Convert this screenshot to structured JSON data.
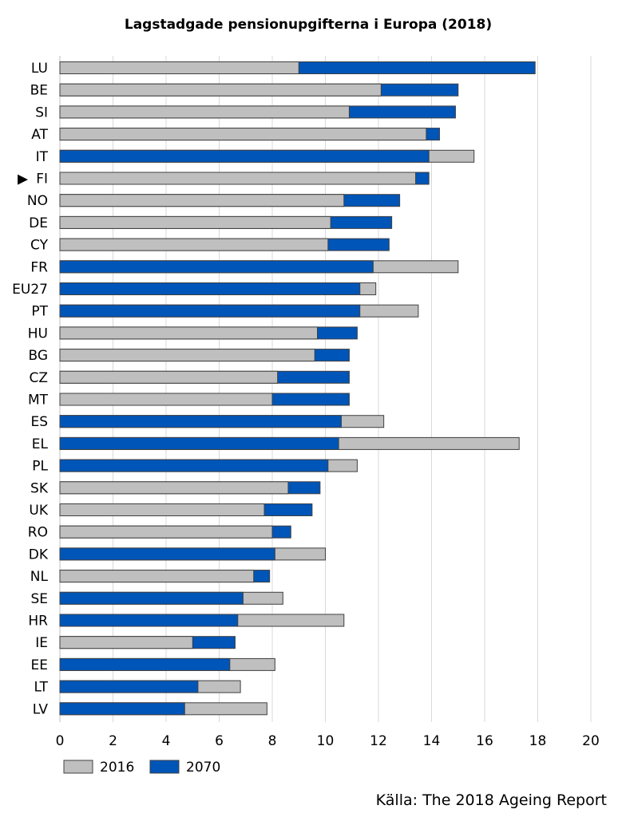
{
  "chart_data": {
    "type": "bar",
    "orientation": "horizontal",
    "title": "Lagstadgade pensionupgifterna i Europa (2018)",
    "source": "Källa: The 2018 Ageing Report",
    "highlight_marker": "▶",
    "highlight_category": "FI",
    "xlim": [
      0,
      20
    ],
    "x_ticks": [
      0,
      2,
      4,
      6,
      8,
      10,
      12,
      14,
      16,
      18,
      20
    ],
    "grid": true,
    "legend_position": "bottom-left",
    "colors": {
      "2016": "#BFBFBF",
      "2070": "#0055B8",
      "border": "#404040",
      "grid": "#D9D9D9"
    },
    "categories": [
      "LU",
      "BE",
      "SI",
      "AT",
      "IT",
      "FI",
      "NO",
      "DE",
      "CY",
      "FR",
      "EU27",
      "PT",
      "HU",
      "BG",
      "CZ",
      "MT",
      "ES",
      "EL",
      "PL",
      "SK",
      "UK",
      "RO",
      "DK",
      "NL",
      "SE",
      "HR",
      "IE",
      "EE",
      "LT",
      "LV"
    ],
    "series": [
      {
        "name": "2016",
        "values": [
          9.0,
          12.1,
          10.9,
          13.8,
          15.6,
          13.4,
          10.7,
          10.2,
          10.1,
          15.0,
          11.9,
          13.5,
          9.7,
          9.6,
          8.2,
          8.0,
          12.2,
          17.3,
          11.2,
          8.6,
          7.7,
          8.0,
          10.0,
          7.3,
          8.4,
          10.7,
          5.0,
          8.1,
          6.8,
          7.8
        ]
      },
      {
        "name": "2070",
        "values": [
          17.9,
          15.0,
          14.9,
          14.3,
          13.9,
          13.9,
          12.8,
          12.5,
          12.4,
          11.8,
          11.3,
          11.3,
          11.2,
          10.9,
          10.9,
          10.9,
          10.6,
          10.5,
          10.1,
          9.8,
          9.5,
          8.7,
          8.1,
          7.9,
          6.9,
          6.7,
          6.6,
          6.4,
          5.2,
          4.7
        ]
      }
    ]
  }
}
